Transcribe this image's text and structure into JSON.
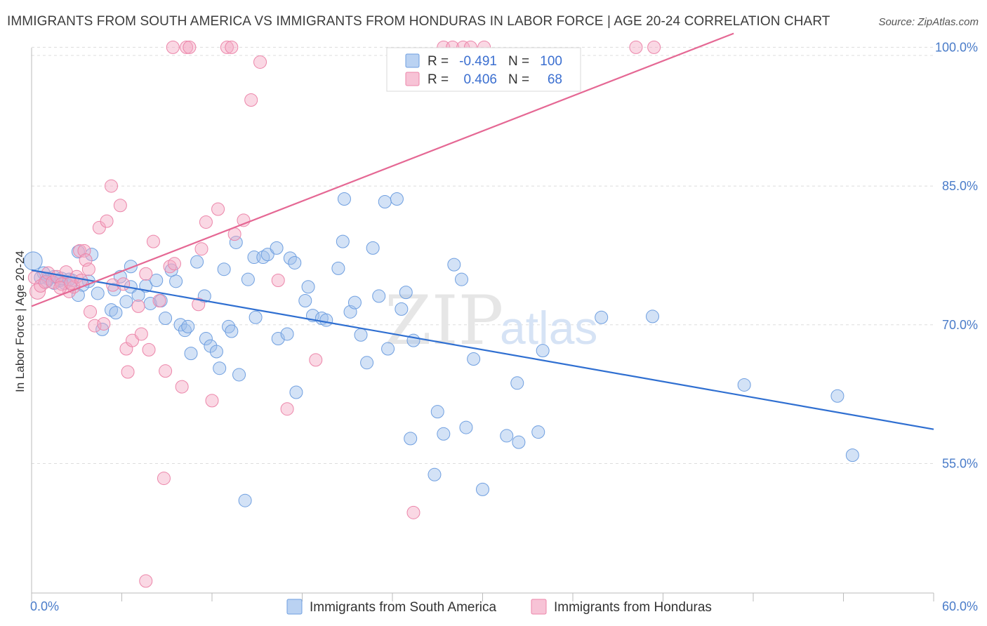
{
  "title": "IMMIGRANTS FROM SOUTH AMERICA VS IMMIGRANTS FROM HONDURAS IN LABOR FORCE | AGE 20-24 CORRELATION CHART",
  "source": "Source: ZipAtlas.com",
  "watermark": {
    "zip": "ZIP",
    "atlas": "atlas"
  },
  "legend": {
    "r_label": "R =",
    "n_label": "N =",
    "rows": [
      {
        "r": "-0.491",
        "n": "100",
        "color": "#9dbfec"
      },
      {
        "r": "0.406",
        "n": "68",
        "color": "#f4a9c4"
      }
    ]
  },
  "chart_data": {
    "type": "scatter",
    "title": "IMMIGRANTS FROM SOUTH AMERICA VS IMMIGRANTS FROM HONDURAS IN LABOR FORCE | AGE 20-24 CORRELATION CHART",
    "xlabel": "",
    "ylabel": "In Labor Force | Age 20-24",
    "xlim": [
      0,
      60
    ],
    "ylim": [
      41,
      102
    ],
    "x_tick_labels": [
      "0.0%",
      "60.0%"
    ],
    "y_ticks": [
      55,
      70,
      85,
      100
    ],
    "y_tick_labels": [
      "55.0%",
      "70.0%",
      "85.0%",
      "100.0%"
    ],
    "grid": true,
    "legend_position": "bottom",
    "series": [
      {
        "name": "Immigrants from South America",
        "color": "#9dbfec",
        "stroke": "#6f9fe0",
        "trend": {
          "x": [
            0,
            60
          ],
          "y": [
            75.9,
            58.7
          ],
          "color": "#2f6fd1"
        },
        "points": [
          [
            0.1,
            76.9
          ],
          [
            0.8,
            75.6
          ],
          [
            1.1,
            75.0
          ],
          [
            1.5,
            74.5
          ],
          [
            1.9,
            74.8
          ],
          [
            2.2,
            74.5
          ],
          [
            2.7,
            74.8
          ],
          [
            3.1,
            77.9
          ],
          [
            3.8,
            74.7
          ],
          [
            3.4,
            74.3
          ],
          [
            4.0,
            77.6
          ],
          [
            4.4,
            73.4
          ],
          [
            3.1,
            73.2
          ],
          [
            4.7,
            69.5
          ],
          [
            5.3,
            71.6
          ],
          [
            5.6,
            71.3
          ],
          [
            5.9,
            75.2
          ],
          [
            6.3,
            72.5
          ],
          [
            6.6,
            76.3
          ],
          [
            6.6,
            74.1
          ],
          [
            7.1,
            73.2
          ],
          [
            7.6,
            74.2
          ],
          [
            7.9,
            72.3
          ],
          [
            8.3,
            74.8
          ],
          [
            8.6,
            72.6
          ],
          [
            8.9,
            70.7
          ],
          [
            9.3,
            75.9
          ],
          [
            9.6,
            74.7
          ],
          [
            9.9,
            70.0
          ],
          [
            10.2,
            69.4
          ],
          [
            10.4,
            69.8
          ],
          [
            10.6,
            66.9
          ],
          [
            11.0,
            76.8
          ],
          [
            11.5,
            73.1
          ],
          [
            11.6,
            68.5
          ],
          [
            11.9,
            67.7
          ],
          [
            12.3,
            67.1
          ],
          [
            12.5,
            65.3
          ],
          [
            12.8,
            76.0
          ],
          [
            13.1,
            69.8
          ],
          [
            13.3,
            69.3
          ],
          [
            13.6,
            78.9
          ],
          [
            13.8,
            64.6
          ],
          [
            14.2,
            51.0
          ],
          [
            14.4,
            74.9
          ],
          [
            14.9,
            70.8
          ],
          [
            14.8,
            77.3
          ],
          [
            15.4,
            77.3
          ],
          [
            15.7,
            77.6
          ],
          [
            16.3,
            78.3
          ],
          [
            16.4,
            68.5
          ],
          [
            17.0,
            69.0
          ],
          [
            17.2,
            77.2
          ],
          [
            17.5,
            76.7
          ],
          [
            17.6,
            62.7
          ],
          [
            18.2,
            72.6
          ],
          [
            18.4,
            74.1
          ],
          [
            18.7,
            71.0
          ],
          [
            19.3,
            70.7
          ],
          [
            19.6,
            70.5
          ],
          [
            20.4,
            76.1
          ],
          [
            20.7,
            79.0
          ],
          [
            20.8,
            83.6
          ],
          [
            21.2,
            71.4
          ],
          [
            21.5,
            72.4
          ],
          [
            21.9,
            68.9
          ],
          [
            22.3,
            65.9
          ],
          [
            22.7,
            78.3
          ],
          [
            23.1,
            73.1
          ],
          [
            23.5,
            83.3
          ],
          [
            23.7,
            67.4
          ],
          [
            24.3,
            83.6
          ],
          [
            24.6,
            71.7
          ],
          [
            24.9,
            73.5
          ],
          [
            25.2,
            57.7
          ],
          [
            25.4,
            68.3
          ],
          [
            26.8,
            53.8
          ],
          [
            27.0,
            60.6
          ],
          [
            27.4,
            58.2
          ],
          [
            28.1,
            76.5
          ],
          [
            28.6,
            74.9
          ],
          [
            28.9,
            58.9
          ],
          [
            30.0,
            52.2
          ],
          [
            29.4,
            66.3
          ],
          [
            31.6,
            58.0
          ],
          [
            32.3,
            63.7
          ],
          [
            32.4,
            57.3
          ],
          [
            33.7,
            58.4
          ],
          [
            34.0,
            67.2
          ],
          [
            37.9,
            70.8
          ],
          [
            41.3,
            70.9
          ],
          [
            47.4,
            63.5
          ],
          [
            53.6,
            62.3
          ],
          [
            54.6,
            55.9
          ],
          [
            1.5,
            75.2
          ],
          [
            2.0,
            75.0
          ],
          [
            0.6,
            75.1
          ],
          [
            1.0,
            74.7
          ],
          [
            2.5,
            74.9
          ],
          [
            5.5,
            73.8
          ]
        ]
      },
      {
        "name": "Immigrants from Honduras",
        "color": "#f4a9c4",
        "stroke": "#ec86aa",
        "trend": {
          "x": [
            0,
            46.7
          ],
          "y": [
            72.0,
            101.5
          ],
          "color": "#e56894"
        },
        "points": [
          [
            0.2,
            75.1
          ],
          [
            0.4,
            73.6
          ],
          [
            0.6,
            74.2
          ],
          [
            0.9,
            74.6
          ],
          [
            1.1,
            75.6
          ],
          [
            1.4,
            74.6
          ],
          [
            1.7,
            75.2
          ],
          [
            2.0,
            74.4
          ],
          [
            2.3,
            75.7
          ],
          [
            2.5,
            73.6
          ],
          [
            2.8,
            74.1
          ],
          [
            3.0,
            75.2
          ],
          [
            3.2,
            78.0
          ],
          [
            3.5,
            78.0
          ],
          [
            3.6,
            77.0
          ],
          [
            3.8,
            76.0
          ],
          [
            3.9,
            71.4
          ],
          [
            4.2,
            69.9
          ],
          [
            4.5,
            80.5
          ],
          [
            4.8,
            70.1
          ],
          [
            5.0,
            81.2
          ],
          [
            5.3,
            85.0
          ],
          [
            5.4,
            74.3
          ],
          [
            5.9,
            82.9
          ],
          [
            6.1,
            74.4
          ],
          [
            6.3,
            67.4
          ],
          [
            6.4,
            64.9
          ],
          [
            6.7,
            68.3
          ],
          [
            7.1,
            72.0
          ],
          [
            7.3,
            69.0
          ],
          [
            7.6,
            75.5
          ],
          [
            7.8,
            67.3
          ],
          [
            8.1,
            79.0
          ],
          [
            8.5,
            72.6
          ],
          [
            8.8,
            53.4
          ],
          [
            8.9,
            65.0
          ],
          [
            9.2,
            76.3
          ],
          [
            9.5,
            76.6
          ],
          [
            9.4,
            100.0
          ],
          [
            10.0,
            63.3
          ],
          [
            10.3,
            100.0
          ],
          [
            10.5,
            100.0
          ],
          [
            11.1,
            72.2
          ],
          [
            11.3,
            78.2
          ],
          [
            11.6,
            81.1
          ],
          [
            12.0,
            61.8
          ],
          [
            12.4,
            82.5
          ],
          [
            13.0,
            100.0
          ],
          [
            13.3,
            100.0
          ],
          [
            13.5,
            79.8
          ],
          [
            14.1,
            81.3
          ],
          [
            14.6,
            94.3
          ],
          [
            15.2,
            98.4
          ],
          [
            16.4,
            74.8
          ],
          [
            17.0,
            60.9
          ],
          [
            18.9,
            66.2
          ],
          [
            25.4,
            49.7
          ],
          [
            7.6,
            42.3
          ],
          [
            27.4,
            100.0
          ],
          [
            28.0,
            100.0
          ],
          [
            28.7,
            100.0
          ],
          [
            29.2,
            100.0
          ],
          [
            30.1,
            100.0
          ],
          [
            40.2,
            100.0
          ],
          [
            41.4,
            100.0
          ],
          [
            1.9,
            74.0
          ],
          [
            2.6,
            74.5
          ],
          [
            3.3,
            74.8
          ]
        ]
      }
    ]
  }
}
